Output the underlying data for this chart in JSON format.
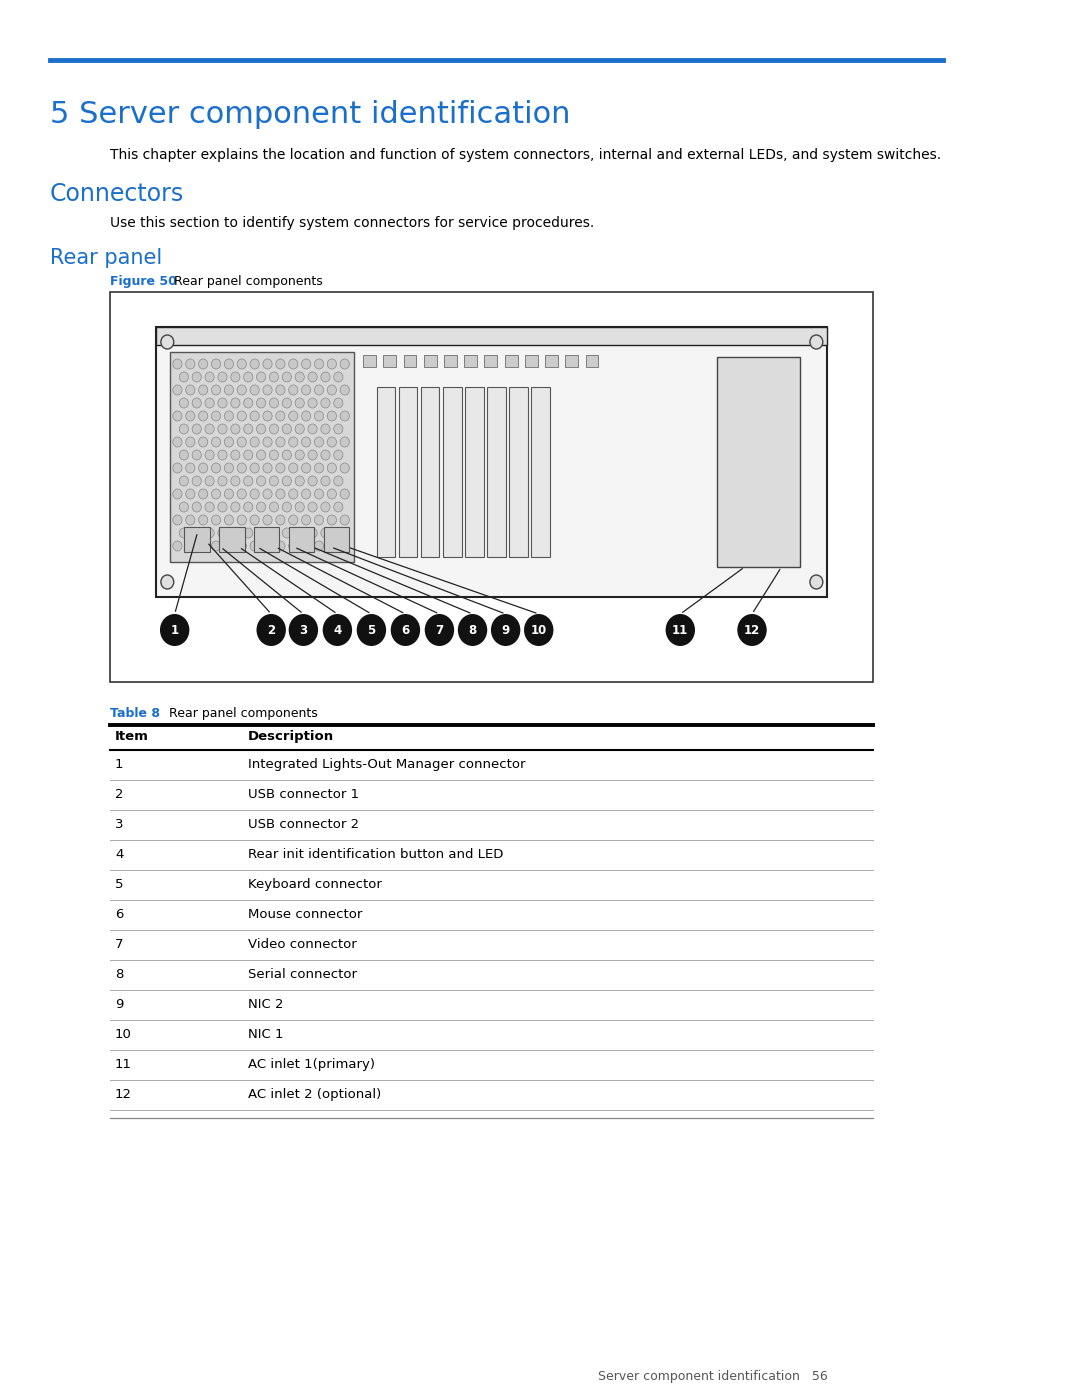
{
  "page_bg": "#ffffff",
  "blue_line_color": "#1a6fcc",
  "blue_text_color": "#1a6fcc",
  "black_text_color": "#000000",
  "gray_text_color": "#555555",
  "chapter_title": "5 Server component identification",
  "chapter_desc": "This chapter explains the location and function of system connectors, internal and external LEDs, and system switches.",
  "section1_title": "Connectors",
  "section1_desc": "Use this section to identify system connectors for service procedures.",
  "section2_title": "Rear panel",
  "figure_label": "Figure 50",
  "figure_desc": " Rear panel components",
  "table_label": "Table 8",
  "table_desc": "  Rear panel components",
  "table_headers": [
    "Item",
    "Description"
  ],
  "table_rows": [
    [
      "1",
      "Integrated Lights-Out Manager connector"
    ],
    [
      "2",
      "USB connector 1"
    ],
    [
      "3",
      "USB connector 2"
    ],
    [
      "4",
      "Rear init identification button and LED"
    ],
    [
      "5",
      "Keyboard connector"
    ],
    [
      "6",
      "Mouse connector"
    ],
    [
      "7",
      "Video connector"
    ],
    [
      "8",
      "Serial connector"
    ],
    [
      "9",
      "NIC 2"
    ],
    [
      "10",
      "NIC 1"
    ],
    [
      "11",
      "AC inlet 1(primary)"
    ],
    [
      "12",
      "AC inlet 2 (optional)"
    ]
  ],
  "footer_text": "Server component identification   56"
}
